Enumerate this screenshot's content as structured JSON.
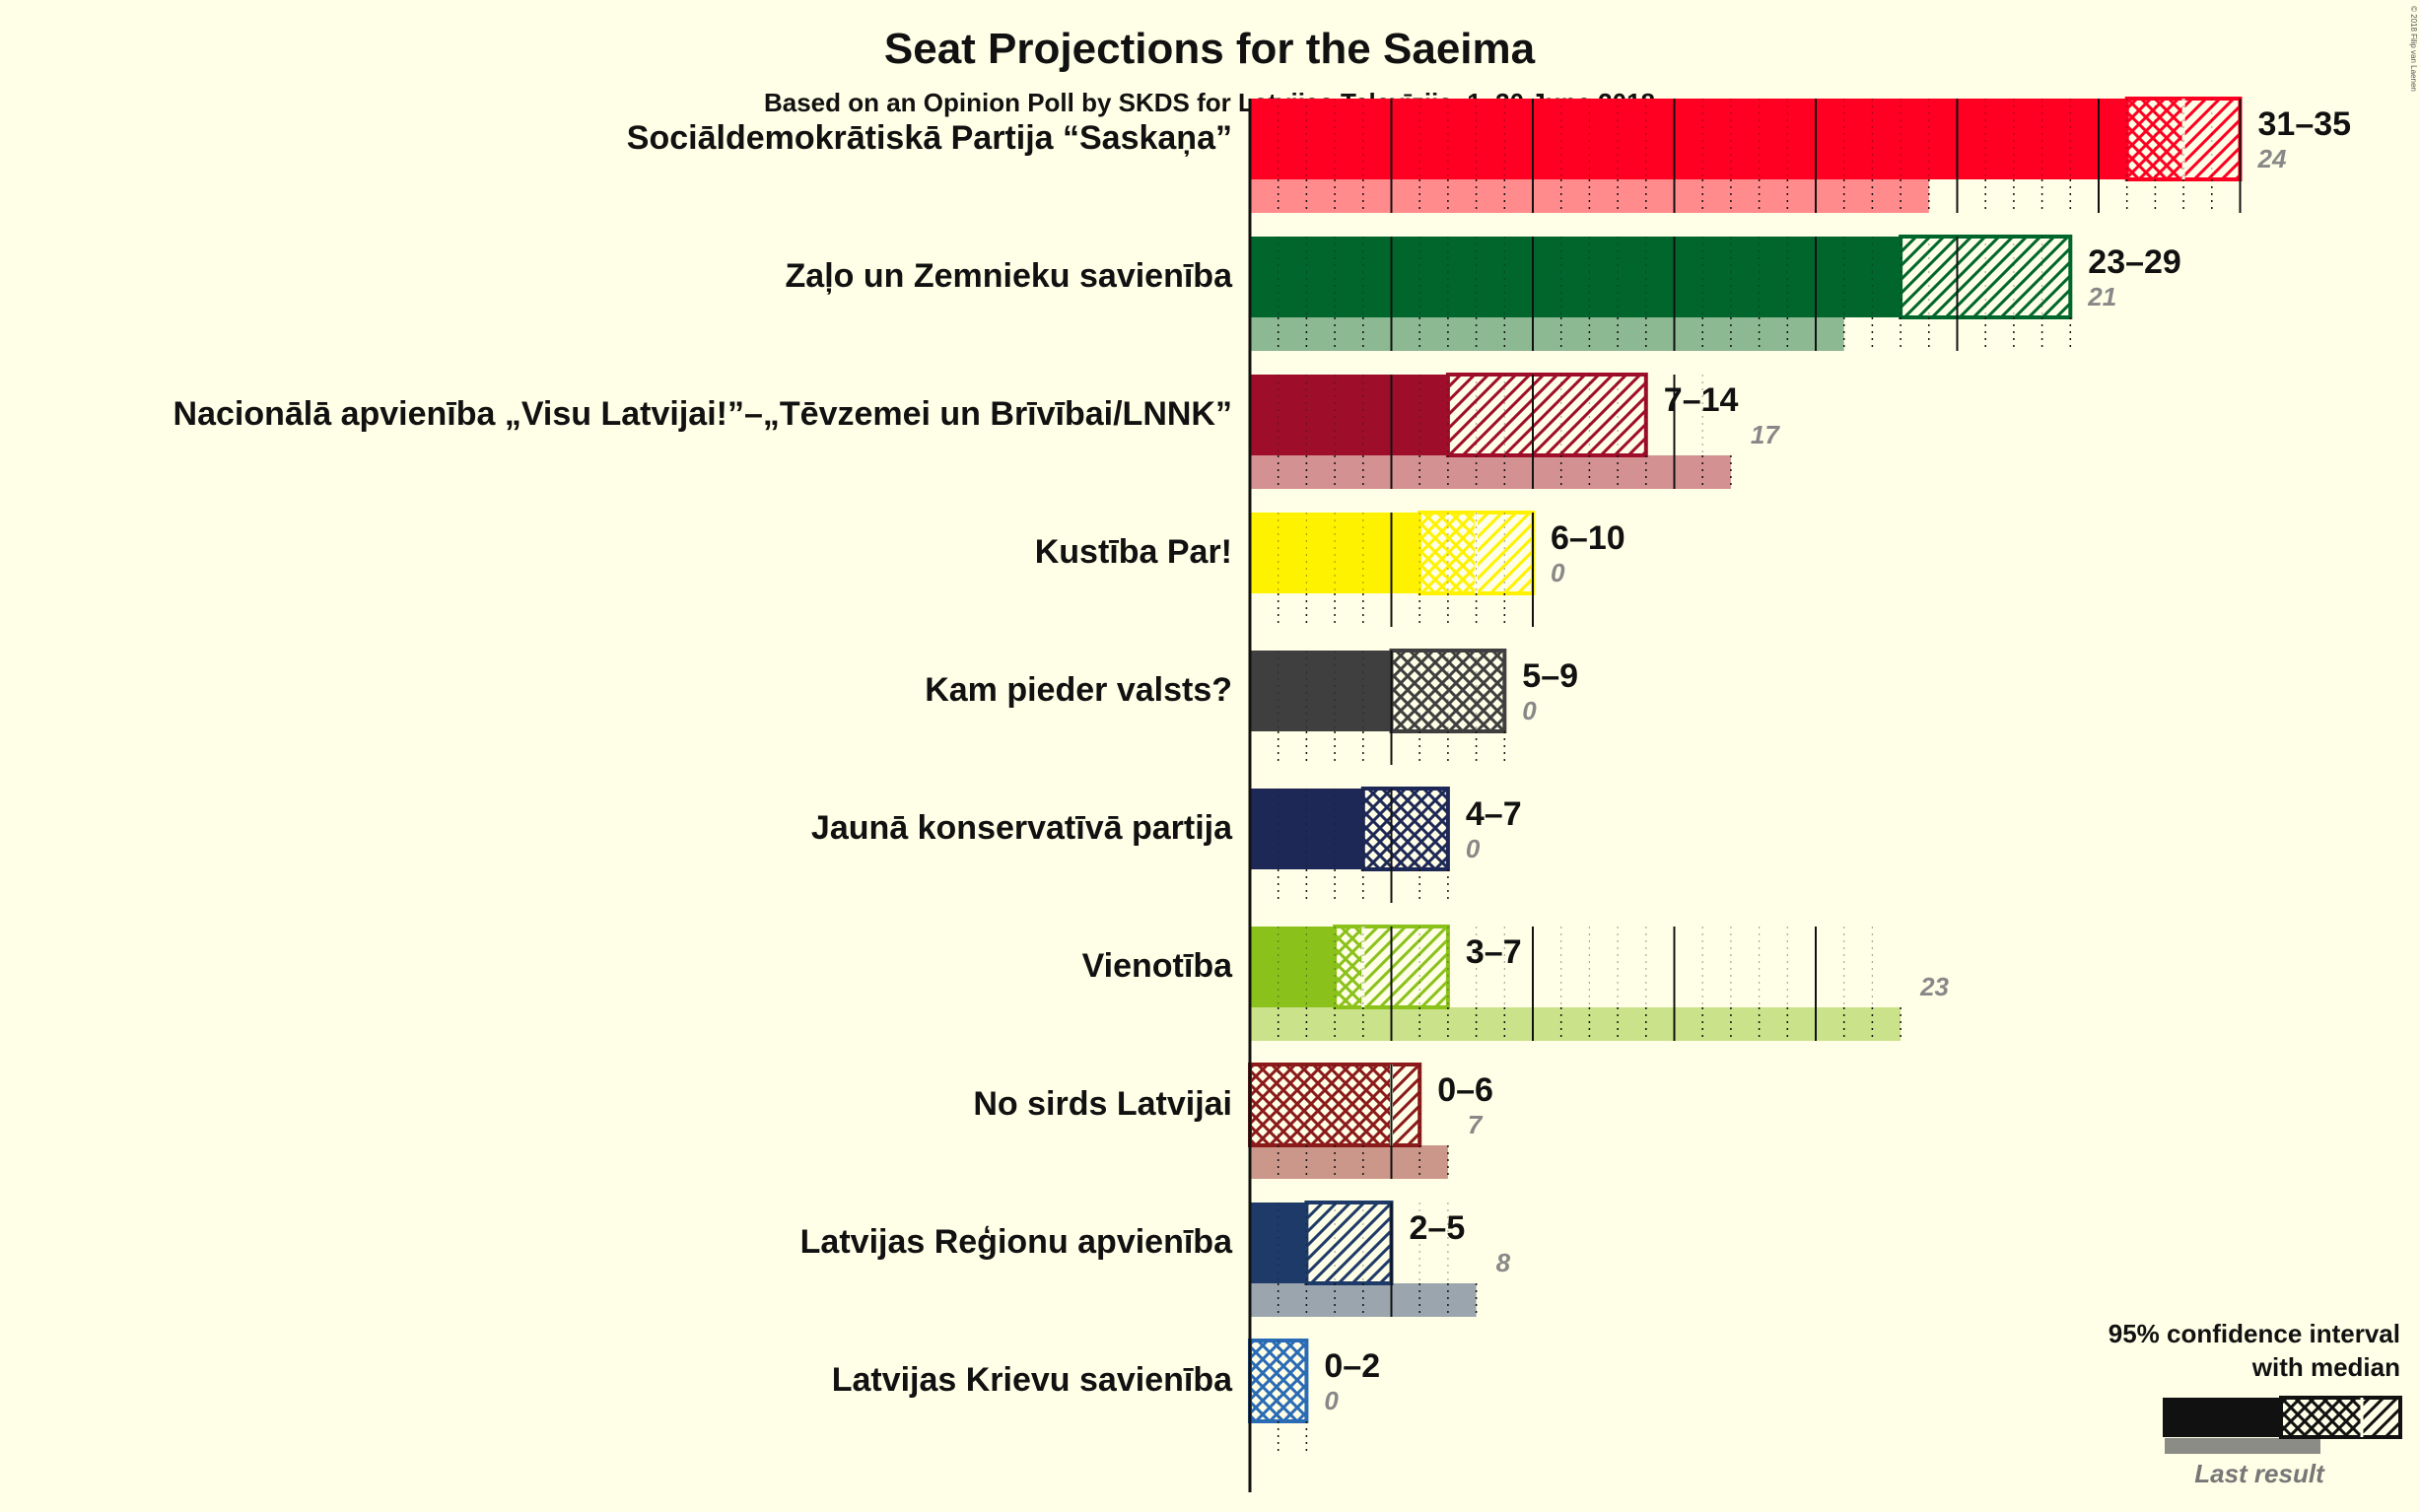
{
  "title": "Seat Projections for the Saeima",
  "subtitle": "Based on an Opinion Poll by SKDS for Latvijas Televīzija, 1–30 June 2018",
  "copyright": "© 2018 Filip van Laenen",
  "legend": {
    "line1": "95% confidence interval",
    "line2": "with median",
    "last_result": "Last result"
  },
  "chart_data": {
    "type": "bar",
    "orientation": "horizontal",
    "title": "Seat Projections for the Saeima",
    "subtitle": "Based on an Opinion Poll by SKDS for Latvijas Televīzija, 1–30 June 2018",
    "x_unit": "seats",
    "xlim": [
      0,
      35
    ],
    "grid": "dotted every seat, solid every 5 seats",
    "legend_position": "bottom-right",
    "parties": [
      {
        "name": "Sociāldemokrātiskā Partija “Saskaņa”",
        "low": 31,
        "median": 33,
        "high": 35,
        "range_label": "31–35",
        "last": 24,
        "last_label": "24",
        "color": "#FF0022"
      },
      {
        "name": "Zaļo un Zemnieku savienība",
        "low": 23,
        "median": 23,
        "high": 29,
        "range_label": "23–29",
        "last": 21,
        "last_label": "21",
        "color": "#00662C"
      },
      {
        "name": "Nacionālā apvienība „Visu Latvijai!”–„Tēvzemei un Brīvībai/LNNK”",
        "low": 7,
        "median": 7,
        "high": 14,
        "range_label": "7–14",
        "last": 17,
        "last_label": "17",
        "color": "#9E0E2A"
      },
      {
        "name": "Kustība Par!",
        "low": 6,
        "median": 8,
        "high": 10,
        "range_label": "6–10",
        "last": 0,
        "last_label": "0",
        "color": "#FFF200"
      },
      {
        "name": "Kam pieder valsts?",
        "low": 5,
        "median": 9,
        "high": 9,
        "range_label": "5–9",
        "last": 0,
        "last_label": "0",
        "color": "#3F3F3F"
      },
      {
        "name": "Jaunā konservatīvā partija",
        "low": 4,
        "median": 7,
        "high": 7,
        "range_label": "4–7",
        "last": 0,
        "last_label": "0",
        "color": "#1E2856"
      },
      {
        "name": "Vienotība",
        "low": 3,
        "median": 4,
        "high": 7,
        "range_label": "3–7",
        "last": 23,
        "last_label": "23",
        "color": "#8AC11B"
      },
      {
        "name": "No sirds Latvijai",
        "low": 0,
        "median": 5,
        "high": 6,
        "range_label": "0–6",
        "last": 7,
        "last_label": "7",
        "color": "#8B1A1A"
      },
      {
        "name": "Latvijas Reģionu apvienība",
        "low": 2,
        "median": 2,
        "high": 5,
        "range_label": "2–5",
        "last": 8,
        "last_label": "8",
        "color": "#1E3A68"
      },
      {
        "name": "Latvijas Krievu savienība",
        "low": 0,
        "median": 2,
        "high": 2,
        "range_label": "0–2",
        "last": 0,
        "last_label": "0",
        "color": "#2A6BB5"
      }
    ]
  }
}
